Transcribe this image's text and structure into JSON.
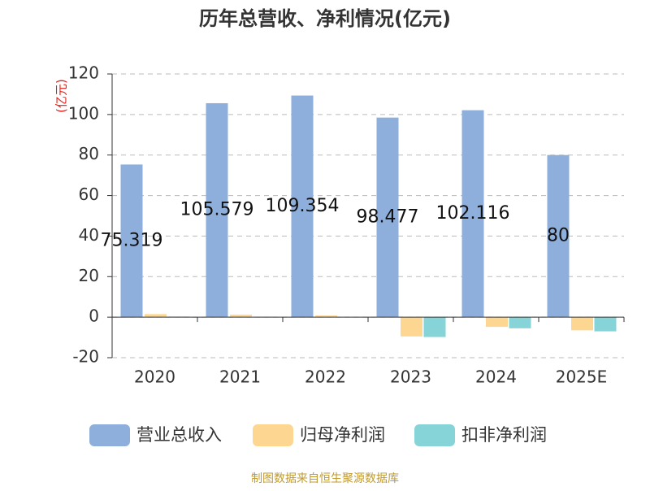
{
  "chart_data": {
    "type": "bar",
    "title": "历年总营收、净利情况(亿元)",
    "y_label": "(亿元)",
    "categories": [
      "2020",
      "2021",
      "2022",
      "2023",
      "2024",
      "2025E"
    ],
    "series": [
      {
        "name": "营业总收入",
        "color": "#8eafdc",
        "values": [
          75.319,
          105.579,
          109.354,
          98.477,
          102.116,
          80
        ],
        "show_labels": true
      },
      {
        "name": "归母净利润",
        "color": "#fdd692",
        "values": [
          1.5,
          1.2,
          0.8,
          -9.5,
          -4.8,
          -6.5
        ]
      },
      {
        "name": "扣非净利润",
        "color": "#86d4d7",
        "values": [
          0.3,
          0.2,
          0.1,
          -9.8,
          -5.5,
          -7.0
        ]
      }
    ],
    "ylim": [
      -20,
      120
    ],
    "yticks": [
      -20,
      0,
      20,
      40,
      60,
      80,
      100,
      120
    ],
    "grid": true,
    "source": "制图数据来自恒生聚源数据库"
  }
}
